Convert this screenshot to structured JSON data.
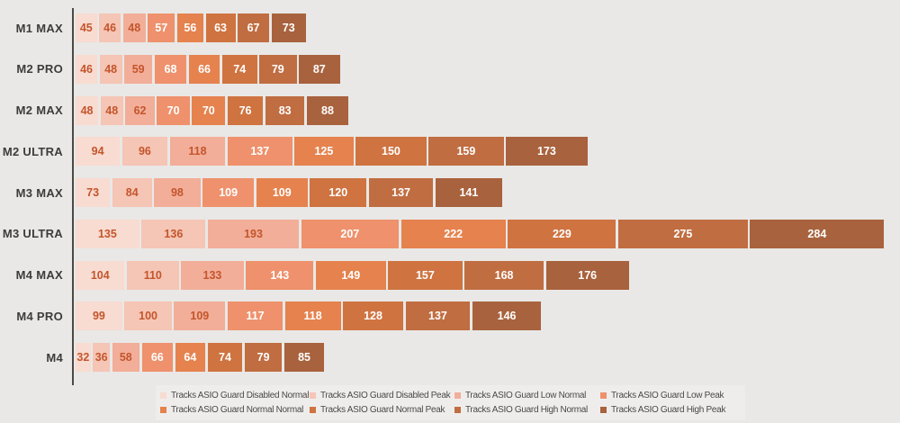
{
  "page": {
    "background_color": "#e9e8e6",
    "axis_color": "#4b4946",
    "category_label_color": "#3e3b39",
    "legend_background_color": "#efedec",
    "legend_text_color": "#4b4846"
  },
  "chart_data": {
    "type": "bar",
    "orientation": "horizontal",
    "grouping": "side-by-side-segments",
    "title": "",
    "xlabel": "",
    "ylabel": "",
    "grid": false,
    "legend_position": "bottom",
    "value_labels": "inside-segments",
    "categories": [
      "M1 MAX",
      "M2 PRO",
      "M2 MAX",
      "M2 ULTRA",
      "M3 MAX",
      "M3 ULTRA",
      "M4 MAX",
      "M4 PRO",
      "M4"
    ],
    "series": [
      {
        "name": "Tracks ASIO Guard Disabled Normal",
        "color": "#f8dbd1",
        "label_color": "#c4552c",
        "values": [
          45,
          46,
          48,
          94,
          73,
          135,
          104,
          99,
          32
        ]
      },
      {
        "name": "Tracks ASIO Guard Disabled Peak",
        "color": "#f5c5b5",
        "label_color": "#c4552c",
        "values": [
          46,
          48,
          48,
          96,
          84,
          136,
          110,
          100,
          36
        ]
      },
      {
        "name": "Tracks ASIO Guard Low Normal",
        "color": "#f2ae99",
        "label_color": "#c4552c",
        "values": [
          48,
          59,
          62,
          118,
          98,
          193,
          133,
          109,
          58
        ]
      },
      {
        "name": "Tracks ASIO Guard Low Peak",
        "color": "#ee916c",
        "label_color": "#ffffff",
        "values": [
          57,
          68,
          70,
          137,
          109,
          207,
          143,
          117,
          66
        ]
      },
      {
        "name": "Tracks ASIO Guard Normal Normal",
        "color": "#e5824e",
        "label_color": "#ffffff",
        "values": [
          56,
          66,
          70,
          125,
          109,
          222,
          149,
          118,
          64
        ]
      },
      {
        "name": "Tracks ASIO Guard Normal Peak",
        "color": "#cf7340",
        "label_color": "#ffffff",
        "values": [
          63,
          74,
          76,
          150,
          120,
          229,
          157,
          128,
          74
        ]
      },
      {
        "name": "Tracks ASIO Guard High Normal",
        "color": "#c06d41",
        "label_color": "#ffffff",
        "values": [
          67,
          79,
          83,
          159,
          137,
          275,
          168,
          137,
          79
        ]
      },
      {
        "name": "Tracks ASIO Guard High Peak",
        "color": "#a8623d",
        "label_color": "#ffffff",
        "values": [
          73,
          87,
          88,
          173,
          141,
          284,
          176,
          146,
          85
        ]
      }
    ]
  }
}
